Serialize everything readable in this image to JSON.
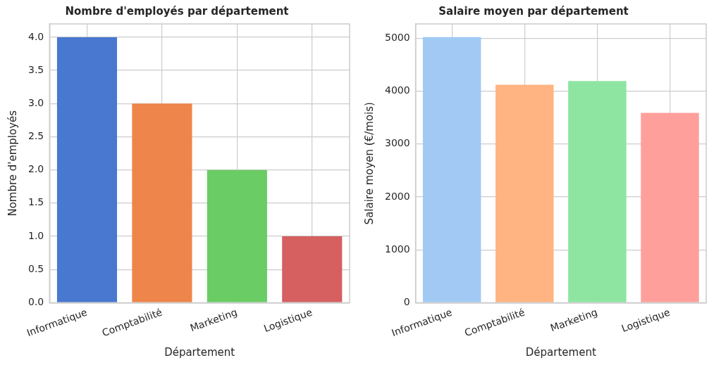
{
  "chart_data": [
    {
      "type": "bar",
      "title": "Nombre d'employés par département",
      "xlabel": "Département",
      "ylabel": "Nombre d'employés",
      "categories": [
        "Informatique",
        "Comptabilité",
        "Marketing",
        "Logistique"
      ],
      "values": [
        4,
        3,
        2,
        1
      ],
      "colors": [
        "#4878d0",
        "#ee854a",
        "#6acc64",
        "#d65f5f"
      ],
      "ylim": [
        0,
        4.2
      ],
      "yticks": [
        {
          "value": 0,
          "label": "0.0"
        },
        {
          "value": 0.5,
          "label": "0.5"
        },
        {
          "value": 1,
          "label": "1.0"
        },
        {
          "value": 1.5,
          "label": "1.5"
        },
        {
          "value": 2,
          "label": "2.0"
        },
        {
          "value": 2.5,
          "label": "2.5"
        },
        {
          "value": 3,
          "label": "3.0"
        },
        {
          "value": 3.5,
          "label": "3.5"
        },
        {
          "value": 4,
          "label": "4.0"
        }
      ],
      "grid": true,
      "legend": false
    },
    {
      "type": "bar",
      "title": "Salaire moyen par département",
      "xlabel": "Département",
      "ylabel": "Salaire moyen (€/mois)",
      "categories": [
        "Informatique",
        "Comptabilité",
        "Marketing",
        "Logistique"
      ],
      "values": [
        5020,
        4120,
        4190,
        3590
      ],
      "colors": [
        "#a1c9f4",
        "#ffb482",
        "#8de5a1",
        "#ff9f9b"
      ],
      "ylim": [
        0,
        5270
      ],
      "yticks": [
        0,
        1000,
        2000,
        3000,
        4000,
        5000
      ],
      "grid": true,
      "legend": false
    }
  ]
}
